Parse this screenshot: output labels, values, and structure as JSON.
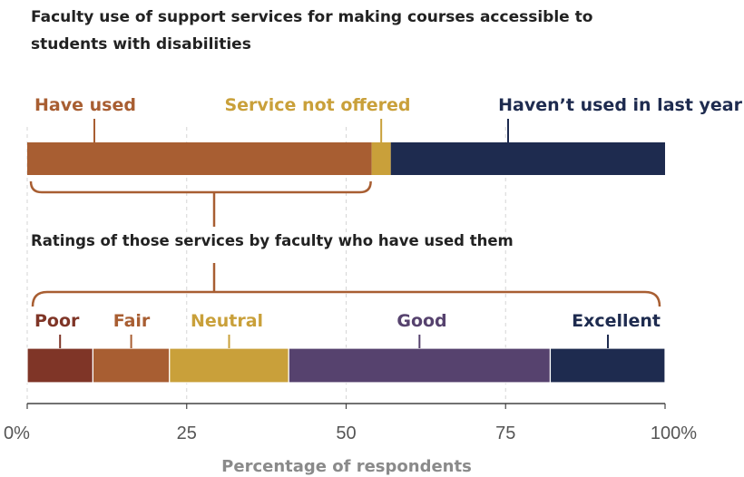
{
  "chart_data": {
    "type": "bar",
    "orientation": "horizontal-stacked",
    "title": "Faculty use of support services for making courses accessible to students with disabilities",
    "xlabel": "Percentage of respondents",
    "xlim": [
      0,
      100
    ],
    "xticks": [
      0,
      25,
      50,
      75,
      100
    ],
    "xtick_labels": [
      "0%",
      "25",
      "50",
      "75",
      "100%"
    ],
    "grid": "vertical dashed",
    "bars": [
      {
        "segments": [
          {
            "name": "Have used",
            "value": 54,
            "color": "#a85e32"
          },
          {
            "name": "Service not offered",
            "value": 3,
            "color": "#c9a03a"
          },
          {
            "name": "Haven’t used in last year",
            "value": 43,
            "color": "#1e2b4f"
          }
        ]
      },
      {
        "subtitle": "Ratings of those services by faculty who have used them",
        "segments": [
          {
            "name": "Poor",
            "value": 10.3,
            "color": "#7f3527"
          },
          {
            "name": "Fair",
            "value": 12,
            "color": "#a85e32"
          },
          {
            "name": "Neutral",
            "value": 18.7,
            "color": "#c9a03a"
          },
          {
            "name": "Good",
            "value": 41,
            "color": "#56426e"
          },
          {
            "name": "Excellent",
            "value": 18,
            "color": "#1e2b4f"
          }
        ]
      }
    ],
    "label_colors": {
      "Have used": "#a85e32",
      "Service not offered": "#c9a03a",
      "Haven’t used in last year": "#1e2b4f",
      "Poor": "#7f3527",
      "Fair": "#a85e32",
      "Neutral": "#c9a03a",
      "Good": "#56426e",
      "Excellent": "#1e2b4f"
    },
    "bracket_color": "#a85e32"
  }
}
